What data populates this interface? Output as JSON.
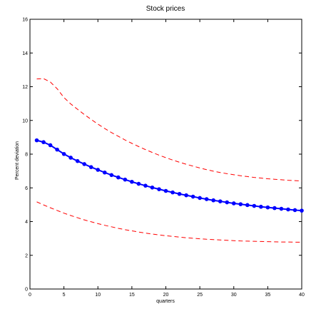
{
  "chart_data": {
    "type": "line",
    "title": "Stock prices",
    "xlabel": "quarters",
    "ylabel": "Percent deviation",
    "xlim": [
      0,
      40
    ],
    "ylim": [
      0,
      16
    ],
    "xticks": [
      0,
      5,
      10,
      15,
      20,
      25,
      30,
      35,
      40
    ],
    "yticks": [
      0,
      2,
      4,
      6,
      8,
      10,
      12,
      14,
      16
    ],
    "grid": false,
    "x": [
      1,
      2,
      3,
      4,
      5,
      6,
      7,
      8,
      9,
      10,
      11,
      12,
      13,
      14,
      15,
      16,
      17,
      18,
      19,
      20,
      21,
      22,
      23,
      24,
      25,
      26,
      27,
      28,
      29,
      30,
      31,
      32,
      33,
      34,
      35,
      36,
      37,
      38,
      39,
      40
    ],
    "series": [
      {
        "role": "estimate",
        "color": "#0000ff",
        "style": "solid-markers",
        "values": [
          8.82,
          8.71,
          8.53,
          8.27,
          8.01,
          7.79,
          7.59,
          7.41,
          7.23,
          7.07,
          6.91,
          6.76,
          6.62,
          6.49,
          6.36,
          6.24,
          6.13,
          6.02,
          5.92,
          5.82,
          5.73,
          5.64,
          5.56,
          5.48,
          5.4,
          5.33,
          5.26,
          5.2,
          5.14,
          5.08,
          5.03,
          4.98,
          4.93,
          4.88,
          4.84,
          4.8,
          4.76,
          4.72,
          4.68,
          4.65
        ]
      },
      {
        "role": "upper-band",
        "color": "#ff0000",
        "style": "dashed",
        "values": [
          12.46,
          12.48,
          12.28,
          11.88,
          11.36,
          10.98,
          10.66,
          10.35,
          10.06,
          9.78,
          9.52,
          9.28,
          9.06,
          8.84,
          8.64,
          8.45,
          8.27,
          8.1,
          7.94,
          7.79,
          7.65,
          7.52,
          7.4,
          7.29,
          7.18,
          7.08,
          6.99,
          6.91,
          6.84,
          6.78,
          6.72,
          6.67,
          6.62,
          6.58,
          6.54,
          6.51,
          6.48,
          6.45,
          6.43,
          6.41
        ]
      },
      {
        "role": "lower-band",
        "color": "#ff0000",
        "style": "dashed",
        "values": [
          5.17,
          4.99,
          4.82,
          4.66,
          4.5,
          4.36,
          4.23,
          4.1,
          3.99,
          3.88,
          3.78,
          3.69,
          3.6,
          3.52,
          3.45,
          3.38,
          3.32,
          3.26,
          3.21,
          3.16,
          3.12,
          3.08,
          3.04,
          3.01,
          2.98,
          2.95,
          2.93,
          2.91,
          2.89,
          2.87,
          2.85,
          2.84,
          2.83,
          2.82,
          2.81,
          2.8,
          2.79,
          2.79,
          2.78,
          2.78
        ]
      }
    ]
  }
}
